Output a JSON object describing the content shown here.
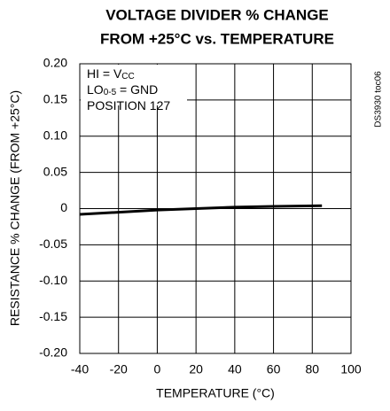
{
  "chart_data": {
    "type": "line",
    "title": [
      "VOLTAGE DIVIDER % CHANGE",
      "FROM +25°C vs. TEMPERATURE"
    ],
    "xlabel": "TEMPERATURE (°C)",
    "ylabel": "RESISTANCE % CHANGE (FROM  +25°C)",
    "side_note": "DS3930 toc06",
    "annotations": [
      [
        "HI = V",
        "CC"
      ],
      [
        "LO",
        "0-5",
        " = GND"
      ],
      [
        "POSITION 127"
      ]
    ],
    "x": [
      -40,
      -20,
      0,
      20,
      40,
      60,
      85
    ],
    "series": [
      {
        "name": "POSITION 127",
        "color": "#000000",
        "values": [
          -0.008,
          -0.005,
          -0.002,
          0,
          0.002,
          0.003,
          0.004
        ]
      }
    ],
    "xlim": [
      -40,
      100
    ],
    "xticks": [
      -40,
      -20,
      0,
      20,
      40,
      60,
      80,
      100
    ],
    "ylim": [
      -0.2,
      0.2
    ],
    "yticks": [
      {
        "value": 0.2,
        "label": "0.20"
      },
      0.15,
      {
        "value": 0.1,
        "label": "0.10"
      },
      0.05,
      0,
      -0.05,
      {
        "value": -0.1,
        "label": "-0.10"
      },
      -0.15,
      {
        "value": -0.2,
        "label": "-0.20"
      }
    ],
    "grid": true
  }
}
